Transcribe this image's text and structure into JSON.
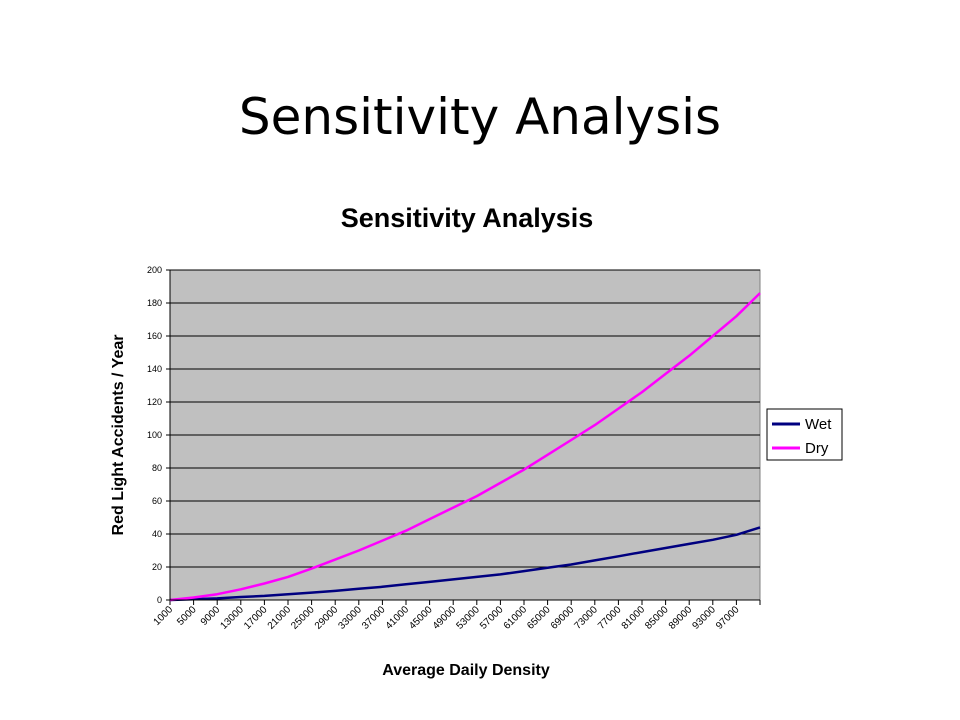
{
  "slide": {
    "title": "Sensitivity Analysis"
  },
  "chart_data": {
    "type": "line",
    "title": "Sensitivity Analysis",
    "xlabel": "Average Daily Density",
    "ylabel": "Red Light Accidents / Year",
    "ylim": [
      0,
      200
    ],
    "yticks": [
      0,
      20,
      40,
      60,
      80,
      100,
      120,
      140,
      160,
      180,
      200
    ],
    "xlim": [
      1000,
      101000
    ],
    "x_tick_labels": [
      1000,
      5000,
      9000,
      13000,
      17000,
      21000,
      25000,
      29000,
      33000,
      37000,
      41000,
      45000,
      49000,
      53000,
      57000,
      61000,
      65000,
      69000,
      73000,
      77000,
      81000,
      85000,
      89000,
      93000,
      97000
    ],
    "grid": true,
    "legend": "right",
    "x": [
      1000,
      5000,
      9000,
      13000,
      17000,
      21000,
      25000,
      29000,
      33000,
      37000,
      41000,
      45000,
      49000,
      53000,
      57000,
      61000,
      65000,
      69000,
      73000,
      77000,
      81000,
      85000,
      89000,
      93000,
      97000,
      101000
    ],
    "series": [
      {
        "name": "Wet",
        "color": "#000080",
        "values": [
          0,
          0.5,
          1,
          1.8,
          2.5,
          3.5,
          4.5,
          5.5,
          6.8,
          8,
          9.5,
          11,
          12.5,
          14,
          15.5,
          17.5,
          19.5,
          21.5,
          24,
          26.5,
          29,
          31.5,
          34,
          36.5,
          39.5,
          44
        ]
      },
      {
        "name": "Dry",
        "color": "#ff00ff",
        "values": [
          0,
          1.5,
          3.5,
          6.5,
          10,
          14,
          19,
          24.5,
          30,
          36,
          42,
          49,
          56,
          63,
          71,
          79,
          88,
          97,
          106,
          116,
          126,
          137,
          148,
          160,
          172,
          186
        ]
      }
    ]
  }
}
